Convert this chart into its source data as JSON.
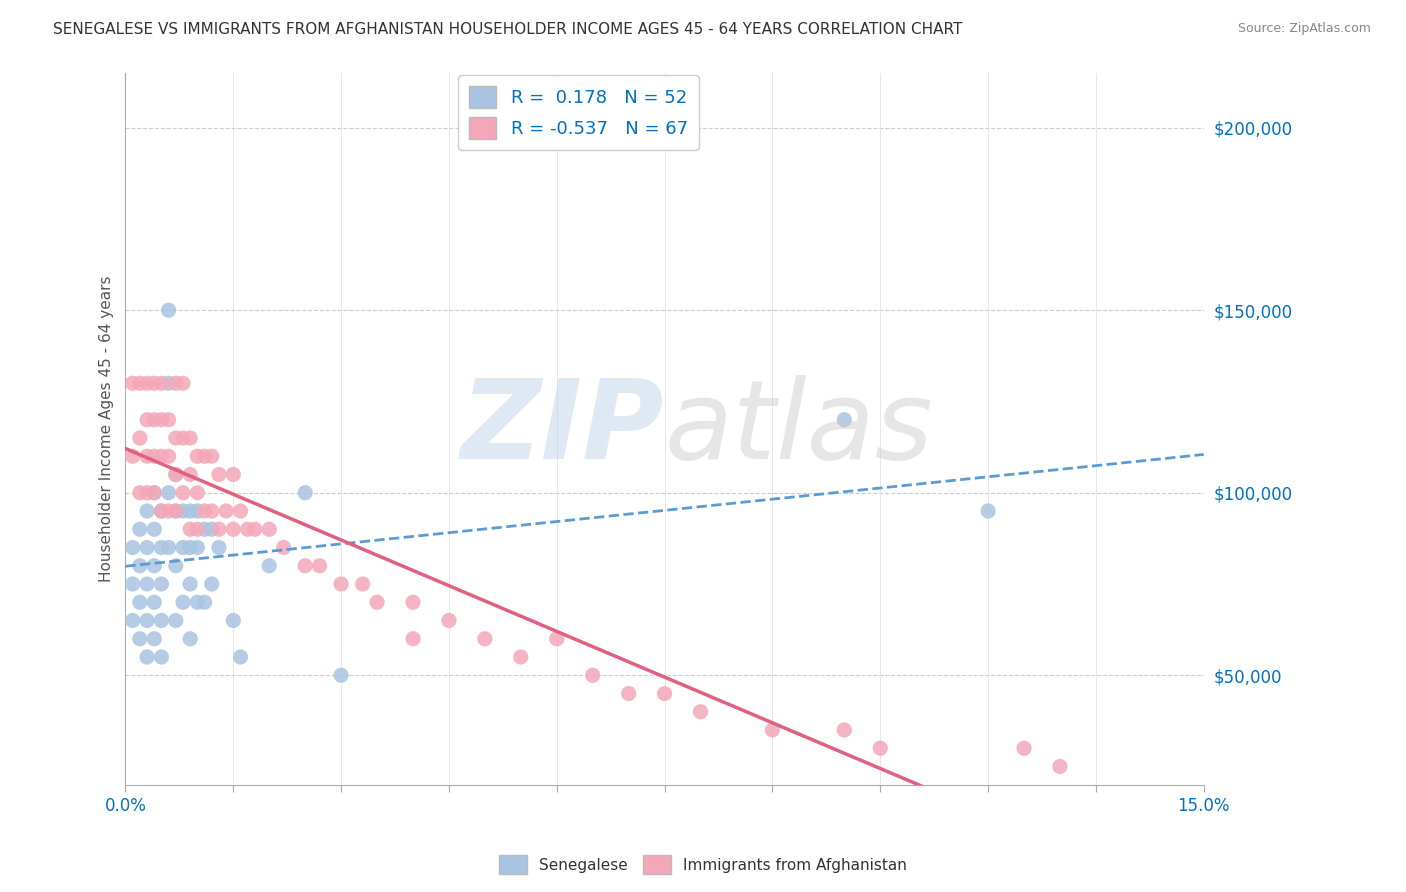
{
  "title": "SENEGALESE VS IMMIGRANTS FROM AFGHANISTAN HOUSEHOLDER INCOME AGES 45 - 64 YEARS CORRELATION CHART",
  "source": "Source: ZipAtlas.com",
  "ylabel": "Householder Income Ages 45 - 64 years",
  "xlim": [
    0.0,
    0.15
  ],
  "ylim": [
    20000,
    215000
  ],
  "xticks": [
    0.0,
    0.015,
    0.03,
    0.045,
    0.06,
    0.075,
    0.09,
    0.105,
    0.12,
    0.135,
    0.15
  ],
  "xtick_labels": [
    "0.0%",
    "",
    "",
    "",
    "",
    "",
    "",
    "",
    "",
    "",
    "15.0%"
  ],
  "ytick_labels_right": [
    "$50,000",
    "$100,000",
    "$150,000",
    "$200,000"
  ],
  "yticks_right": [
    50000,
    100000,
    150000,
    200000
  ],
  "senegalese_color": "#a8c4e0",
  "afghanistan_color": "#f4a7b9",
  "senegalese_R": 0.178,
  "senegalese_N": 52,
  "afghanistan_R": -0.537,
  "afghanistan_N": 67,
  "trend_blue_color": "#5b9bd5",
  "trend_pink_color": "#e06080",
  "background_color": "#ffffff",
  "senegalese_x": [
    0.001,
    0.001,
    0.001,
    0.002,
    0.002,
    0.002,
    0.002,
    0.003,
    0.003,
    0.003,
    0.003,
    0.003,
    0.004,
    0.004,
    0.004,
    0.004,
    0.004,
    0.005,
    0.005,
    0.005,
    0.005,
    0.005,
    0.006,
    0.006,
    0.006,
    0.006,
    0.007,
    0.007,
    0.007,
    0.007,
    0.008,
    0.008,
    0.008,
    0.009,
    0.009,
    0.009,
    0.009,
    0.01,
    0.01,
    0.01,
    0.011,
    0.011,
    0.012,
    0.012,
    0.013,
    0.015,
    0.016,
    0.02,
    0.025,
    0.03,
    0.1,
    0.12
  ],
  "senegalese_y": [
    85000,
    75000,
    65000,
    90000,
    80000,
    70000,
    60000,
    95000,
    85000,
    75000,
    65000,
    55000,
    100000,
    90000,
    80000,
    70000,
    60000,
    95000,
    85000,
    75000,
    65000,
    55000,
    150000,
    130000,
    100000,
    85000,
    105000,
    95000,
    80000,
    65000,
    95000,
    85000,
    70000,
    95000,
    85000,
    75000,
    60000,
    95000,
    85000,
    70000,
    90000,
    70000,
    90000,
    75000,
    85000,
    65000,
    55000,
    80000,
    100000,
    50000,
    120000,
    95000
  ],
  "afghanistan_x": [
    0.001,
    0.001,
    0.002,
    0.002,
    0.002,
    0.003,
    0.003,
    0.003,
    0.003,
    0.004,
    0.004,
    0.004,
    0.004,
    0.005,
    0.005,
    0.005,
    0.005,
    0.006,
    0.006,
    0.006,
    0.007,
    0.007,
    0.007,
    0.007,
    0.008,
    0.008,
    0.008,
    0.009,
    0.009,
    0.009,
    0.01,
    0.01,
    0.01,
    0.011,
    0.011,
    0.012,
    0.012,
    0.013,
    0.013,
    0.014,
    0.015,
    0.015,
    0.016,
    0.017,
    0.018,
    0.02,
    0.022,
    0.025,
    0.027,
    0.03,
    0.033,
    0.035,
    0.04,
    0.04,
    0.045,
    0.05,
    0.055,
    0.06,
    0.065,
    0.07,
    0.075,
    0.08,
    0.09,
    0.1,
    0.105,
    0.125,
    0.13
  ],
  "afghanistan_y": [
    130000,
    110000,
    130000,
    115000,
    100000,
    130000,
    120000,
    110000,
    100000,
    130000,
    120000,
    110000,
    100000,
    130000,
    120000,
    110000,
    95000,
    120000,
    110000,
    95000,
    130000,
    115000,
    105000,
    95000,
    130000,
    115000,
    100000,
    115000,
    105000,
    90000,
    110000,
    100000,
    90000,
    110000,
    95000,
    110000,
    95000,
    105000,
    90000,
    95000,
    105000,
    90000,
    95000,
    90000,
    90000,
    90000,
    85000,
    80000,
    80000,
    75000,
    75000,
    70000,
    70000,
    60000,
    65000,
    60000,
    55000,
    60000,
    50000,
    45000,
    45000,
    40000,
    35000,
    35000,
    30000,
    30000,
    25000
  ]
}
